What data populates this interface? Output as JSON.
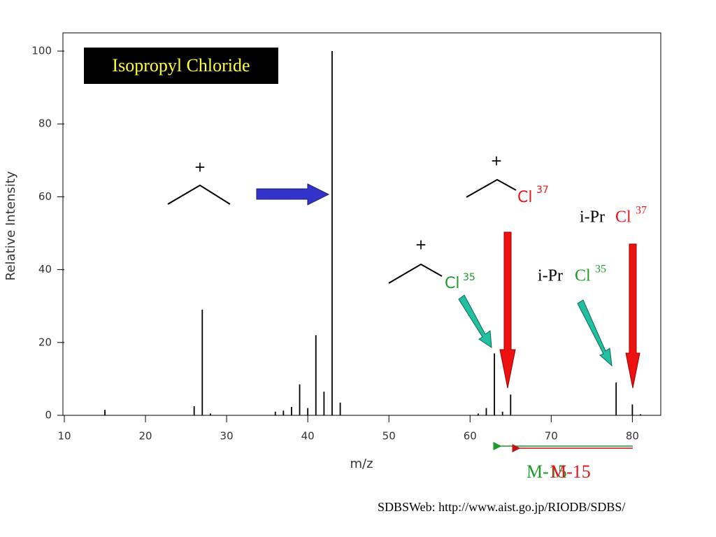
{
  "chart_data": {
    "type": "stem",
    "title": "Isopropyl Chloride",
    "x_label": "m/z",
    "y_label": "Relative Intensity",
    "x": [
      15,
      26,
      27,
      28,
      36,
      37,
      38,
      39,
      40,
      41,
      42,
      43,
      44,
      61,
      62,
      63,
      64,
      65,
      78,
      80,
      81
    ],
    "values": [
      1.5,
      2.5,
      29,
      0.5,
      1,
      1.3,
      2.3,
      8.5,
      2,
      22,
      6.5,
      100,
      3.5,
      0.5,
      2,
      17,
      1,
      5.7,
      9,
      3,
      0.3
    ],
    "color": "#000000",
    "xlim": [
      10,
      83.5
    ],
    "ylim": [
      0,
      105
    ],
    "xticks": [
      10,
      20,
      30,
      40,
      50,
      60,
      70,
      80
    ],
    "yticks": [
      0,
      20,
      40,
      60,
      80,
      100
    ],
    "annotations": [
      {
        "text": "+",
        "color": "#000000"
      },
      {
        "text": "+",
        "color": "#000000"
      },
      {
        "text": "+",
        "color": "#000000"
      },
      {
        "text": "Cl",
        "color": "#e8141a"
      },
      {
        "text": "37",
        "color": "#e8141a"
      },
      {
        "text": "Cl",
        "color": "#1a9a2a"
      },
      {
        "text": "35",
        "color": "#1a9a2a"
      },
      {
        "text": "i-Pr",
        "color": "#000000"
      },
      {
        "text": "Cl",
        "color": "#e8141a"
      },
      {
        "text": "37",
        "color": "#e8141a"
      },
      {
        "text": "i-Pr",
        "color": "#000000"
      },
      {
        "text": "Cl",
        "color": "#1a9a2a"
      },
      {
        "text": "35",
        "color": "#1a9a2a"
      },
      {
        "text": "M-15",
        "color": "#1a9a2a"
      },
      {
        "text": "M-15",
        "color": "#e8141a"
      }
    ],
    "source": "SDBSWeb: http://www.aist.go.jp/RIODB/SDBS/"
  }
}
